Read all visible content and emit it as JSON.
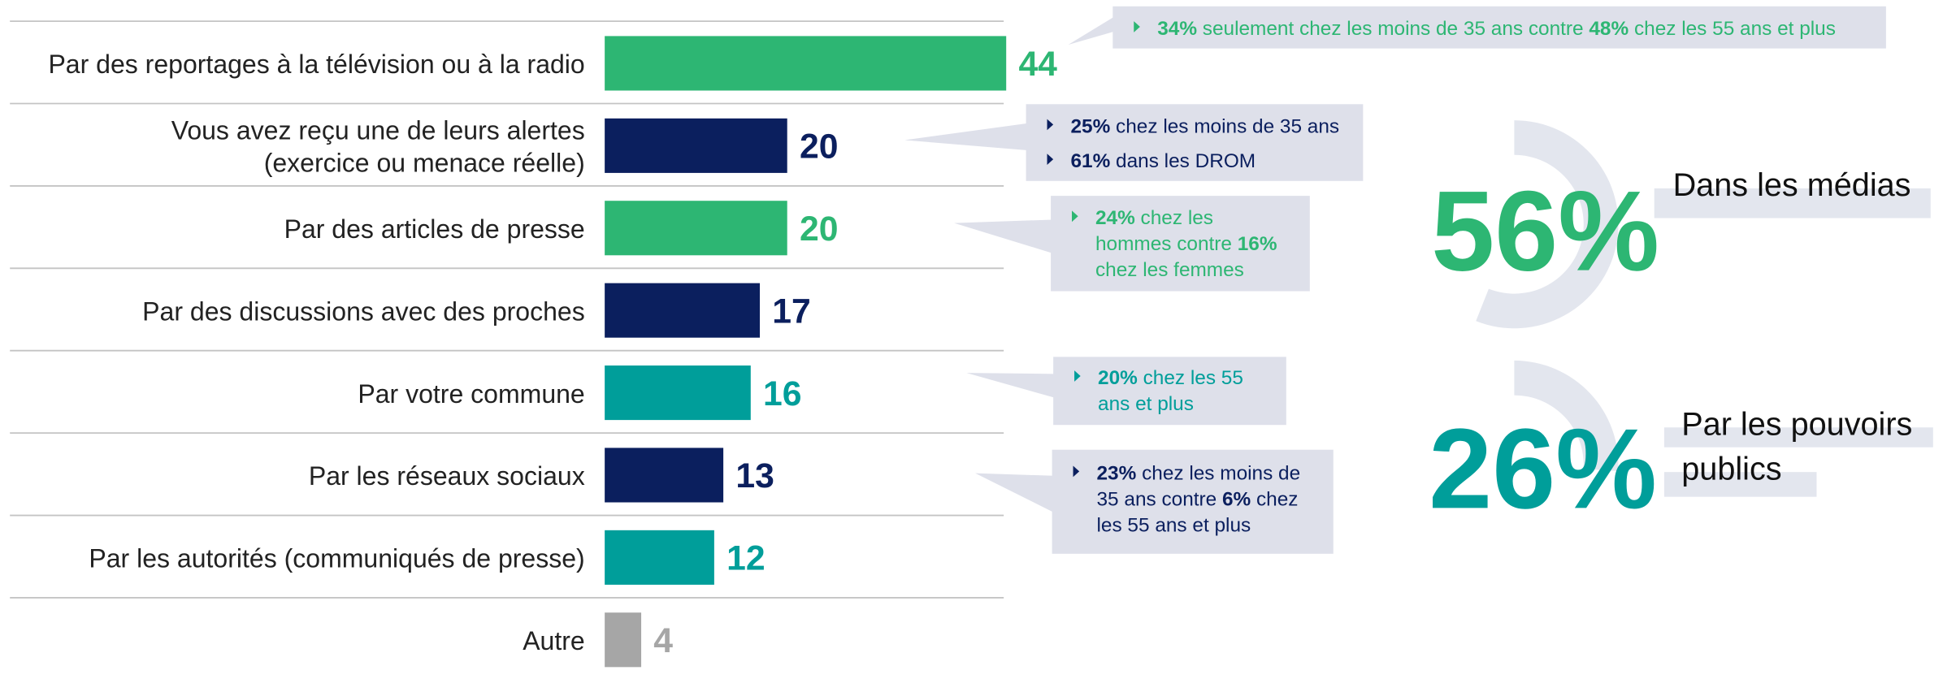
{
  "chart_data": {
    "type": "bar",
    "categories": [
      [
        "Par des reportages à la télévision ou à la radio"
      ],
      [
        "Vous avez reçu une de leurs alertes",
        "(exercice ou menace réelle)"
      ],
      [
        "Par des articles de presse"
      ],
      [
        "Par des discussions avec des proches"
      ],
      [
        "Par votre commune"
      ],
      [
        "Par les réseaux sociaux"
      ],
      [
        "Par les autorités (communiqués de presse)"
      ],
      [
        "Autre"
      ]
    ],
    "values": [
      44,
      20,
      20,
      17,
      16,
      13,
      12,
      4
    ],
    "colors": [
      "#2db673",
      "#0b1f5e",
      "#2db673",
      "#0b1f5e",
      "#009e9a",
      "#0b1f5e",
      "#009e9a",
      "#a6a6a6"
    ],
    "callouts": [
      {
        "bullets": [
          [
            [
              {
                "text": "34%",
                "bold": true
              },
              {
                "text": " seulement chez les moins de 35 ans contre "
              },
              {
                "text": "48%",
                "bold": true
              },
              {
                "text": " chez les 55 ans et plus"
              }
            ]
          ]
        ]
      },
      {
        "bullets": [
          [
            [
              {
                "text": "25%",
                "bold": true
              },
              {
                "text": " chez les moins de 35 ans"
              }
            ]
          ],
          [
            [
              {
                "text": "61%",
                "bold": true
              },
              {
                "text": " dans les DROM"
              }
            ]
          ]
        ]
      },
      {
        "bullets": [
          [
            [
              {
                "text": "24%",
                "bold": true
              },
              {
                "text": " chez les"
              }
            ],
            [
              {
                "text": "hommes contre "
              },
              {
                "text": "16%",
                "bold": true
              }
            ],
            [
              {
                "text": "chez les femmes"
              }
            ]
          ]
        ]
      },
      {
        "bullets": [
          [
            [
              {
                "text": "20%",
                "bold": true
              },
              {
                "text": " chez les 55"
              }
            ],
            [
              {
                "text": "ans et plus"
              }
            ]
          ]
        ]
      },
      {
        "bullets": [
          [
            [
              {
                "text": "23%",
                "bold": true
              },
              {
                "text": " chez les moins de"
              }
            ],
            [
              {
                "text": "35 ans contre "
              },
              {
                "text": "6%",
                "bold": true
              },
              {
                "text": " chez"
              }
            ],
            [
              {
                "text": "les 55 ans et plus"
              }
            ]
          ]
        ]
      }
    ],
    "highlights": {
      "values": [
        56,
        26
      ],
      "value_labels": [
        "56%",
        "26%"
      ],
      "labels": [
        [
          "Dans les médias"
        ],
        [
          "Par les pouvoirs",
          "publics"
        ]
      ],
      "colors": [
        "#2db673",
        "#009e9a"
      ]
    }
  }
}
